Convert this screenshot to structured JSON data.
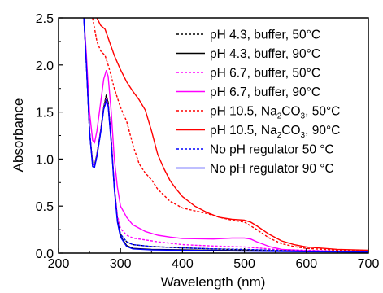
{
  "chart_data": {
    "type": "line",
    "title": "",
    "xlabel": "Wavelength (nm)",
    "ylabel": "Absorbance",
    "xlim": [
      200,
      700
    ],
    "ylim": [
      0.0,
      2.5
    ],
    "x_ticks": [
      "200",
      "300",
      "400",
      "500",
      "600",
      "700"
    ],
    "y_ticks": [
      "0.0",
      "0.5",
      "1.0",
      "1.5",
      "2.0",
      "2.5"
    ],
    "grid": false,
    "legend_position": "top-right",
    "series": [
      {
        "name": "pH 4.3, buffer, 50°C",
        "label_parts": [
          "pH 4.3, buffer, 50°C"
        ],
        "color": "#000000",
        "dashed": true,
        "points": [
          [
            240,
            2.6
          ],
          [
            245,
            2.0
          ],
          [
            250,
            1.3
          ],
          [
            255,
            0.95
          ],
          [
            258,
            0.93
          ],
          [
            262,
            1.05
          ],
          [
            268,
            1.3
          ],
          [
            273,
            1.55
          ],
          [
            277,
            1.68
          ],
          [
            280,
            1.6
          ],
          [
            285,
            1.2
          ],
          [
            290,
            0.7
          ],
          [
            295,
            0.35
          ],
          [
            300,
            0.2
          ],
          [
            310,
            0.12
          ],
          [
            320,
            0.09
          ],
          [
            350,
            0.07
          ],
          [
            400,
            0.055
          ],
          [
            450,
            0.045
          ],
          [
            500,
            0.035
          ],
          [
            550,
            0.028
          ],
          [
            600,
            0.022
          ],
          [
            650,
            0.018
          ],
          [
            700,
            0.015
          ]
        ]
      },
      {
        "name": "pH 4.3, buffer, 90°C",
        "label_parts": [
          "pH 4.3, buffer, 90°C"
        ],
        "color": "#000000",
        "dashed": false,
        "points": [
          [
            240,
            2.6
          ],
          [
            245,
            2.0
          ],
          [
            250,
            1.3
          ],
          [
            255,
            0.95
          ],
          [
            258,
            0.93
          ],
          [
            262,
            1.05
          ],
          [
            268,
            1.3
          ],
          [
            273,
            1.55
          ],
          [
            277,
            1.67
          ],
          [
            280,
            1.6
          ],
          [
            285,
            1.2
          ],
          [
            290,
            0.7
          ],
          [
            295,
            0.35
          ],
          [
            300,
            0.18
          ],
          [
            310,
            0.08
          ],
          [
            320,
            0.05
          ],
          [
            350,
            0.04
          ],
          [
            400,
            0.035
          ],
          [
            450,
            0.03
          ],
          [
            500,
            0.025
          ],
          [
            550,
            0.02
          ],
          [
            600,
            0.018
          ],
          [
            650,
            0.015
          ],
          [
            700,
            0.012
          ]
        ]
      },
      {
        "name": "pH 6.7, buffer, 50°C",
        "label_parts": [
          "pH 6.7, buffer, 50°C"
        ],
        "color": "#ff00ff",
        "dashed": true,
        "points": [
          [
            240,
            2.6
          ],
          [
            245,
            2.0
          ],
          [
            250,
            1.3
          ],
          [
            255,
            0.95
          ],
          [
            258,
            0.93
          ],
          [
            262,
            1.05
          ],
          [
            268,
            1.3
          ],
          [
            273,
            1.55
          ],
          [
            277,
            1.64
          ],
          [
            280,
            1.58
          ],
          [
            285,
            1.2
          ],
          [
            290,
            0.72
          ],
          [
            295,
            0.4
          ],
          [
            300,
            0.26
          ],
          [
            310,
            0.19
          ],
          [
            320,
            0.16
          ],
          [
            340,
            0.14
          ],
          [
            360,
            0.12
          ],
          [
            400,
            0.09
          ],
          [
            450,
            0.075
          ],
          [
            500,
            0.065
          ],
          [
            520,
            0.055
          ],
          [
            550,
            0.04
          ],
          [
            600,
            0.03
          ],
          [
            650,
            0.022
          ],
          [
            700,
            0.018
          ]
        ]
      },
      {
        "name": "pH 6.7, buffer, 90°C",
        "label_parts": [
          "pH 6.7, buffer, 90°C"
        ],
        "color": "#ff00ff",
        "dashed": false,
        "points": [
          [
            240,
            2.6
          ],
          [
            245,
            2.1
          ],
          [
            250,
            1.5
          ],
          [
            255,
            1.2
          ],
          [
            258,
            1.17
          ],
          [
            262,
            1.3
          ],
          [
            268,
            1.6
          ],
          [
            273,
            1.85
          ],
          [
            277,
            1.94
          ],
          [
            280,
            1.88
          ],
          [
            285,
            1.5
          ],
          [
            290,
            1.0
          ],
          [
            295,
            0.7
          ],
          [
            300,
            0.5
          ],
          [
            310,
            0.38
          ],
          [
            320,
            0.3
          ],
          [
            340,
            0.23
          ],
          [
            360,
            0.19
          ],
          [
            380,
            0.17
          ],
          [
            400,
            0.155
          ],
          [
            450,
            0.15
          ],
          [
            480,
            0.16
          ],
          [
            500,
            0.16
          ],
          [
            510,
            0.15
          ],
          [
            520,
            0.12
          ],
          [
            540,
            0.07
          ],
          [
            560,
            0.04
          ],
          [
            600,
            0.025
          ],
          [
            650,
            0.018
          ],
          [
            700,
            0.015
          ]
        ]
      },
      {
        "name": "pH 10.5, Na2CO3, 50°C",
        "label_parts": [
          "pH 10.5, Na",
          "2",
          "CO",
          "3",
          ", 50°C"
        ],
        "color": "#ff0000",
        "dashed": true,
        "points": [
          [
            240,
            2.6
          ],
          [
            250,
            2.6
          ],
          [
            255,
            2.5
          ],
          [
            262,
            2.25
          ],
          [
            268,
            2.15
          ],
          [
            275,
            2.1
          ],
          [
            280,
            2.0
          ],
          [
            285,
            1.88
          ],
          [
            290,
            1.75
          ],
          [
            300,
            1.55
          ],
          [
            310,
            1.4
          ],
          [
            320,
            1.15
          ],
          [
            330,
            0.95
          ],
          [
            340,
            0.85
          ],
          [
            350,
            0.78
          ],
          [
            360,
            0.68
          ],
          [
            380,
            0.55
          ],
          [
            400,
            0.48
          ],
          [
            420,
            0.45
          ],
          [
            440,
            0.42
          ],
          [
            460,
            0.38
          ],
          [
            480,
            0.35
          ],
          [
            500,
            0.33
          ],
          [
            520,
            0.25
          ],
          [
            540,
            0.16
          ],
          [
            560,
            0.1
          ],
          [
            580,
            0.07
          ],
          [
            600,
            0.05
          ],
          [
            650,
            0.03
          ],
          [
            700,
            0.025
          ]
        ]
      },
      {
        "name": "pH 10.5, Na2CO3, 90°C",
        "label_parts": [
          "pH 10.5, Na",
          "2",
          "CO",
          "3",
          ", 90°C"
        ],
        "color": "#ff0000",
        "dashed": false,
        "points": [
          [
            240,
            2.6
          ],
          [
            255,
            2.6
          ],
          [
            262,
            2.5
          ],
          [
            268,
            2.42
          ],
          [
            275,
            2.38
          ],
          [
            282,
            2.25
          ],
          [
            290,
            2.1
          ],
          [
            300,
            1.95
          ],
          [
            310,
            1.82
          ],
          [
            320,
            1.72
          ],
          [
            330,
            1.63
          ],
          [
            340,
            1.52
          ],
          [
            350,
            1.3
          ],
          [
            360,
            1.05
          ],
          [
            370,
            0.9
          ],
          [
            380,
            0.77
          ],
          [
            390,
            0.68
          ],
          [
            400,
            0.6
          ],
          [
            420,
            0.5
          ],
          [
            440,
            0.43
          ],
          [
            460,
            0.38
          ],
          [
            480,
            0.36
          ],
          [
            500,
            0.35
          ],
          [
            510,
            0.33
          ],
          [
            520,
            0.29
          ],
          [
            540,
            0.2
          ],
          [
            560,
            0.13
          ],
          [
            580,
            0.09
          ],
          [
            600,
            0.065
          ],
          [
            650,
            0.04
          ],
          [
            700,
            0.03
          ]
        ]
      },
      {
        "name": "No pH regulator 50 °C",
        "label_parts": [
          "No pH regulator 50 °C"
        ],
        "color": "#0000ff",
        "dashed": true,
        "points": [
          [
            240,
            2.6
          ],
          [
            245,
            2.0
          ],
          [
            250,
            1.3
          ],
          [
            255,
            0.92
          ],
          [
            258,
            0.91
          ],
          [
            262,
            1.03
          ],
          [
            268,
            1.28
          ],
          [
            273,
            1.53
          ],
          [
            277,
            1.63
          ],
          [
            280,
            1.57
          ],
          [
            285,
            1.18
          ],
          [
            290,
            0.7
          ],
          [
            295,
            0.35
          ],
          [
            300,
            0.2
          ],
          [
            310,
            0.12
          ],
          [
            320,
            0.09
          ],
          [
            350,
            0.07
          ],
          [
            400,
            0.055
          ],
          [
            450,
            0.045
          ],
          [
            500,
            0.04
          ],
          [
            550,
            0.03
          ],
          [
            600,
            0.022
          ],
          [
            650,
            0.018
          ],
          [
            700,
            0.015
          ]
        ]
      },
      {
        "name": "No pH regulator 90 °C",
        "label_parts": [
          "No pH regulator 90 °C"
        ],
        "color": "#0000ff",
        "dashed": false,
        "points": [
          [
            240,
            2.6
          ],
          [
            245,
            2.0
          ],
          [
            250,
            1.3
          ],
          [
            255,
            0.92
          ],
          [
            258,
            0.91
          ],
          [
            262,
            1.03
          ],
          [
            268,
            1.28
          ],
          [
            273,
            1.53
          ],
          [
            277,
            1.61
          ],
          [
            280,
            1.56
          ],
          [
            285,
            1.17
          ],
          [
            290,
            0.68
          ],
          [
            295,
            0.33
          ],
          [
            300,
            0.17
          ],
          [
            310,
            0.07
          ],
          [
            320,
            0.045
          ],
          [
            350,
            0.035
          ],
          [
            400,
            0.03
          ],
          [
            450,
            0.025
          ],
          [
            500,
            0.022
          ],
          [
            550,
            0.018
          ],
          [
            600,
            0.015
          ],
          [
            650,
            0.012
          ],
          [
            700,
            0.01
          ]
        ]
      }
    ]
  }
}
